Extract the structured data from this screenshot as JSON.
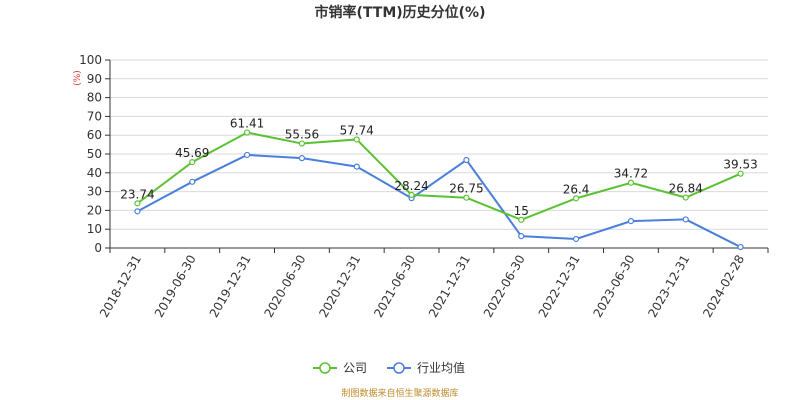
{
  "chart_data": {
    "type": "line",
    "title": "市销率(TTM)历史分位(%)",
    "y_unit": "(%)",
    "ylim": [
      0,
      100
    ],
    "y_ticks": [
      0,
      10,
      20,
      30,
      40,
      50,
      60,
      70,
      80,
      90,
      100
    ],
    "grid": true,
    "legend_position": "bottom-center",
    "categories": [
      "2018-12-31",
      "2019-06-30",
      "2019-12-31",
      "2020-06-30",
      "2020-12-31",
      "2021-06-30",
      "2021-12-31",
      "2022-06-30",
      "2022-12-31",
      "2023-06-30",
      "2023-12-31",
      "2024-02-28"
    ],
    "series": [
      {
        "name": "公司",
        "color": "#5ac232",
        "values": [
          23.74,
          45.69,
          61.41,
          55.56,
          57.74,
          28.24,
          26.75,
          15,
          26.4,
          34.72,
          26.84,
          39.53
        ],
        "labels": [
          "23.74",
          "45.69",
          "61.41",
          "55.56",
          "57.74",
          "28.24",
          "26.75",
          "15",
          "26.4",
          "34.72",
          "26.84",
          "39.53"
        ]
      },
      {
        "name": "行业均值",
        "color": "#4a7fdb",
        "values": [
          19.5,
          35.2,
          49.5,
          47.8,
          43.3,
          26.5,
          46.8,
          6.3,
          4.8,
          14.3,
          15.2,
          0.5
        ],
        "labels": []
      }
    ],
    "source": "制图数据来自恒生聚源数据库"
  }
}
